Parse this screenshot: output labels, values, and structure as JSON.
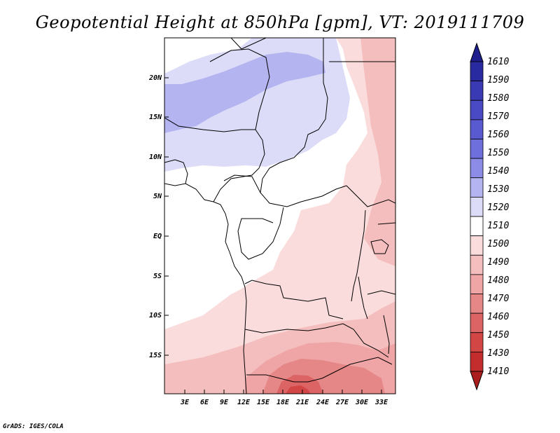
{
  "title": "Geopotential Height at 850hPa [gpm], VT: 2019111709",
  "footer": "GrADS: IGES/COLA",
  "map": {
    "lon_ticks": [
      "3E",
      "6E",
      "9E",
      "12E",
      "15E",
      "18E",
      "21E",
      "24E",
      "27E",
      "30E",
      "33E"
    ],
    "lat_ticks": [
      "20N",
      "15N",
      "10N",
      "5N",
      "EQ",
      "5S",
      "10S",
      "15S"
    ]
  },
  "colorbar": {
    "levels": [
      "1610",
      "1590",
      "1580",
      "1570",
      "1560",
      "1550",
      "1540",
      "1530",
      "1520",
      "1510",
      "1500",
      "1490",
      "1480",
      "1470",
      "1460",
      "1450",
      "1430",
      "1410"
    ],
    "colors": [
      "#1e1e8c",
      "#2a2aa0",
      "#3a3ab4",
      "#4a4ac4",
      "#5a5ad0",
      "#6e6edc",
      "#8c8ce6",
      "#b4b4f0",
      "#dcdcf8",
      "#ffffff",
      "#fadcdc",
      "#f5bebe",
      "#efa5a5",
      "#e68787",
      "#dc6464",
      "#d24646",
      "#c32d2d",
      "#aa1e1e"
    ]
  },
  "colors": {
    "land_line": "#000000",
    "background": "#ffffff"
  }
}
